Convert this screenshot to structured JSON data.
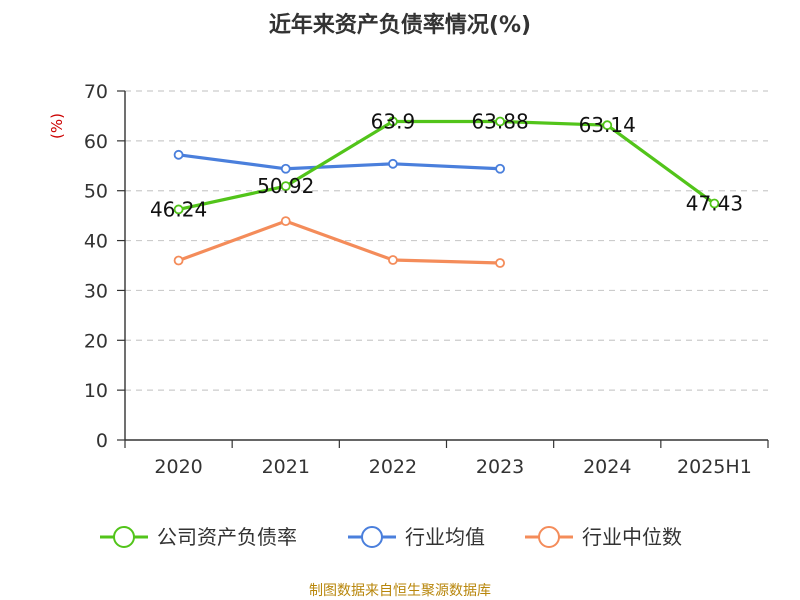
{
  "chart_data": {
    "type": "line",
    "title": "近年来资产负债率情况(%)",
    "ylabel": "(%)",
    "categories": [
      "2020",
      "2021",
      "2022",
      "2023",
      "2024",
      "2025H1"
    ],
    "ylim": [
      0,
      70
    ],
    "yticks": [
      0,
      10,
      20,
      30,
      40,
      50,
      60,
      70
    ],
    "grid": true,
    "legend_position": "bottom",
    "series": [
      {
        "name": "公司资产负债率",
        "color": "#52c41a",
        "values": [
          46.24,
          50.92,
          63.9,
          63.88,
          63.14,
          47.43
        ],
        "labels": [
          "46.24",
          "50.92",
          "63.9",
          "63.88",
          "63.14",
          "47.43"
        ]
      },
      {
        "name": "行业均值",
        "color": "#4a7fdc",
        "values": [
          57.2,
          54.4,
          55.4,
          54.4,
          null,
          null
        ]
      },
      {
        "name": "行业中位数",
        "color": "#f48c5a",
        "values": [
          36.0,
          43.9,
          36.1,
          35.5,
          null,
          null
        ]
      }
    ]
  },
  "source": "制图数据来自恒生聚源数据库"
}
